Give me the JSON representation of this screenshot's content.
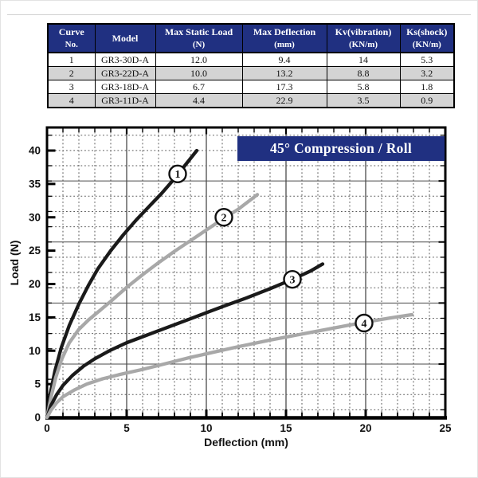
{
  "table": {
    "header_bg": "#203081",
    "row_alt_bg": "#d4d4d4",
    "columns": [
      {
        "line1": "Curve",
        "line2": "No."
      },
      {
        "line1": "Model",
        "line2": ""
      },
      {
        "line1": "Max Static Load",
        "line2": "(N)"
      },
      {
        "line1": "Max Deflection",
        "line2": "(mm)"
      },
      {
        "line1": "Kv(vibration)",
        "line2": "(KN/m)"
      },
      {
        "line1": "Ks(shock)",
        "line2": "(KN/m)"
      }
    ],
    "rows": [
      [
        "1",
        "GR3-30D-A",
        "12.0",
        "9.4",
        "14",
        "5.3"
      ],
      [
        "2",
        "GR3-22D-A",
        "10.0",
        "13.2",
        "8.8",
        "3.2"
      ],
      [
        "3",
        "GR3-18D-A",
        "6.7",
        "17.3",
        "5.8",
        "1.8"
      ],
      [
        "4",
        "GR3-11D-A",
        "4.4",
        "22.9",
        "3.5",
        "0.9"
      ]
    ]
  },
  "chart_data": {
    "type": "line",
    "title": "45° Compression / Roll",
    "title_bg": "#203081",
    "xlabel": "Deflection (mm)",
    "ylabel": "Load (N)",
    "xlim": [
      0,
      25
    ],
    "ylim": [
      0,
      43.5
    ],
    "x_ticks": [
      0,
      5,
      10,
      15,
      20,
      25
    ],
    "y_ticks": [
      0,
      5,
      10,
      15,
      20,
      25,
      30,
      35,
      40
    ],
    "grid": true,
    "series": [
      {
        "name": "1",
        "model": "GR3-30D-A",
        "color": "#1a1a1a",
        "label_at": [
          8.2,
          36.5
        ],
        "points": [
          [
            0,
            0
          ],
          [
            0.2,
            3.5
          ],
          [
            0.5,
            7
          ],
          [
            0.9,
            10.5
          ],
          [
            1.4,
            13.8
          ],
          [
            2,
            17
          ],
          [
            2.6,
            19.8
          ],
          [
            3.2,
            22.3
          ],
          [
            4,
            25
          ],
          [
            4.8,
            27.4
          ],
          [
            5.6,
            29.6
          ],
          [
            6.4,
            31.6
          ],
          [
            7.2,
            33.6
          ],
          [
            8,
            35.8
          ],
          [
            8.7,
            37.9
          ],
          [
            9.4,
            40
          ]
        ]
      },
      {
        "name": "2",
        "model": "GR3-22D-A",
        "color": "#a8a8a8",
        "label_at": [
          11.1,
          30.0
        ],
        "points": [
          [
            0,
            0
          ],
          [
            0.25,
            3
          ],
          [
            0.55,
            6
          ],
          [
            0.9,
            8.6
          ],
          [
            1.4,
            11.2
          ],
          [
            2,
            13.2
          ],
          [
            2.6,
            14.6
          ],
          [
            3.2,
            15.8
          ],
          [
            4,
            17.4
          ],
          [
            5,
            19.5
          ],
          [
            6,
            21.4
          ],
          [
            7,
            23.2
          ],
          [
            8,
            24.9
          ],
          [
            9,
            26.5
          ],
          [
            10,
            28.1
          ],
          [
            11,
            29.7
          ],
          [
            12,
            31.2
          ],
          [
            13.2,
            33.4
          ]
        ]
      },
      {
        "name": "3",
        "model": "GR3-18D-A",
        "color": "#1a1a1a",
        "label_at": [
          15.4,
          20.7
        ],
        "points": [
          [
            0,
            0
          ],
          [
            0.25,
            1.8
          ],
          [
            0.6,
            3.4
          ],
          [
            1,
            4.8
          ],
          [
            1.6,
            6.3
          ],
          [
            2.3,
            7.7
          ],
          [
            3,
            8.8
          ],
          [
            4,
            10.1
          ],
          [
            5,
            11.2
          ],
          [
            6,
            12.1
          ],
          [
            7,
            13
          ],
          [
            8,
            13.9
          ],
          [
            9,
            14.8
          ],
          [
            10,
            15.7
          ],
          [
            11,
            16.6
          ],
          [
            12.5,
            17.9
          ],
          [
            14,
            19.3
          ],
          [
            15.5,
            20.8
          ],
          [
            16.5,
            21.9
          ],
          [
            17.3,
            23
          ]
        ]
      },
      {
        "name": "4",
        "model": "GR3-11D-A",
        "color": "#a8a8a8",
        "label_at": [
          19.9,
          14.15
        ],
        "points": [
          [
            0,
            0
          ],
          [
            0.25,
            1.1
          ],
          [
            0.6,
            2.2
          ],
          [
            1,
            3.1
          ],
          [
            1.7,
            4.1
          ],
          [
            2.5,
            5
          ],
          [
            3.5,
            5.8
          ],
          [
            4.5,
            6.4
          ],
          [
            6,
            7.2
          ],
          [
            7.5,
            8.1
          ],
          [
            9,
            9
          ],
          [
            10.5,
            9.8
          ],
          [
            12,
            10.6
          ],
          [
            14,
            11.6
          ],
          [
            16,
            12.5
          ],
          [
            18,
            13.4
          ],
          [
            20,
            14.3
          ],
          [
            21.5,
            14.9
          ],
          [
            22.9,
            15.4
          ]
        ]
      }
    ]
  }
}
